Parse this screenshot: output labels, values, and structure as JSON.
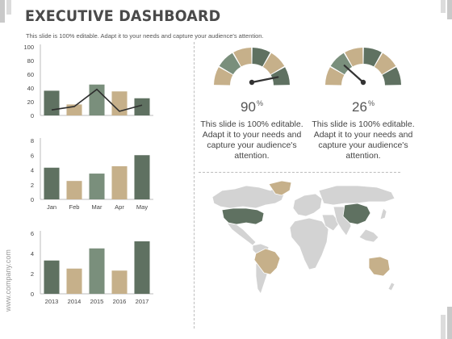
{
  "slide": {
    "title": "EXECUTIVE DASHBOARD",
    "subtitle": "This slide is 100% editable. Adapt it to your needs and capture your audience's attention.",
    "watermark": "www.company.com"
  },
  "colors": {
    "dark_green": "#5f7161",
    "mid_green": "#7a8f7c",
    "tan": "#c6b08a",
    "dark_line": "#2e2e2e",
    "map_gray": "#d3d3d3"
  },
  "chart_data": [
    {
      "type": "bar",
      "categories": [
        "",
        "",
        "",
        "",
        ""
      ],
      "series": [
        {
          "values": [
            36,
            16,
            45,
            35,
            25
          ]
        },
        {
          "values": [
            8,
            13,
            38,
            6,
            15
          ]
        }
      ],
      "series_types": [
        "bar",
        "line"
      ],
      "ylim": [
        0,
        100
      ],
      "yticks": [
        "0",
        "20",
        "40",
        "60",
        "80",
        "100"
      ],
      "bar_colors": [
        "#5f7161",
        "#c6b08a",
        "#7a8f7c",
        "#c6b08a",
        "#5f7161"
      ]
    },
    {
      "type": "bar",
      "categories": [
        "Jan",
        "Feb",
        "Mar",
        "Apr",
        "May"
      ],
      "values": [
        4.3,
        2.5,
        3.5,
        4.5,
        6
      ],
      "ylim": [
        0,
        8
      ],
      "yticks": [
        "0",
        "2",
        "4",
        "6",
        "8"
      ],
      "bar_colors": [
        "#5f7161",
        "#c6b08a",
        "#7a8f7c",
        "#c6b08a",
        "#5f7161"
      ]
    },
    {
      "type": "bar",
      "categories": [
        "2013",
        "2014",
        "2015",
        "2016",
        "2017"
      ],
      "values": [
        3.3,
        2.5,
        4.5,
        2.3,
        5.2
      ],
      "ylim": [
        0,
        6
      ],
      "yticks": [
        "0",
        "2",
        "4",
        "6"
      ],
      "bar_colors": [
        "#5f7161",
        "#c6b08a",
        "#7a8f7c",
        "#c6b08a",
        "#5f7161"
      ]
    }
  ],
  "gauges": [
    {
      "percent": 90,
      "value_label": "90",
      "unit": "%",
      "description": "This slide is 100% editable. Adapt it to your needs and capture your audience's attention."
    },
    {
      "percent": 26,
      "value_label": "26",
      "unit": "%",
      "description": "This slide is 100% editable. Adapt it to your needs and capture your audience's attention."
    }
  ],
  "gauge_segment_colors": [
    "#c6b08a",
    "#7a8f7c",
    "#c6b08a",
    "#5f7161",
    "#c6b08a",
    "#5f7161"
  ],
  "map": {
    "highlighted_regions": [
      {
        "name": "United States",
        "color": "#5f7161"
      },
      {
        "name": "Greenland",
        "color": "#c6b08a"
      },
      {
        "name": "Brazil",
        "color": "#c6b08a"
      },
      {
        "name": "China",
        "color": "#5f7161"
      },
      {
        "name": "Australia",
        "color": "#c6b08a"
      }
    ]
  }
}
